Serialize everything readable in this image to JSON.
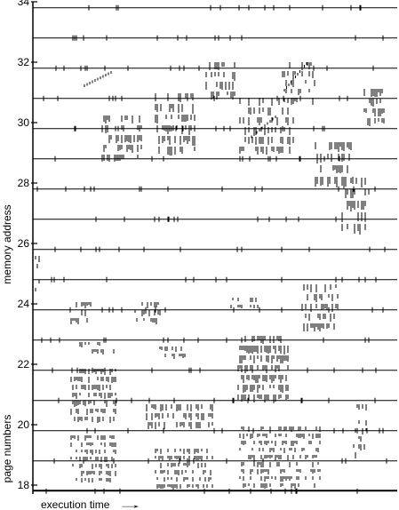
{
  "chart_data": {
    "type": "scatter",
    "title": "",
    "xlabel": "execution time",
    "xlabel_arrow": "→",
    "ylabel": "memory address",
    "ylabel_secondary": "page numbers",
    "ylim": [
      17.7,
      34.2
    ],
    "y_tick_labels": [
      "18",
      "20",
      "22",
      "24",
      "26",
      "28",
      "30",
      "32",
      "34"
    ],
    "page_boundaries": [
      17.8,
      18.8,
      19.8,
      20.8,
      21.8,
      22.8,
      23.8,
      24.8,
      25.8,
      26.8,
      27.8,
      28.8,
      29.8,
      30.8,
      31.8,
      32.8,
      33.8
    ],
    "grid": false,
    "legend": "none",
    "stroke_color": "#000000"
  }
}
